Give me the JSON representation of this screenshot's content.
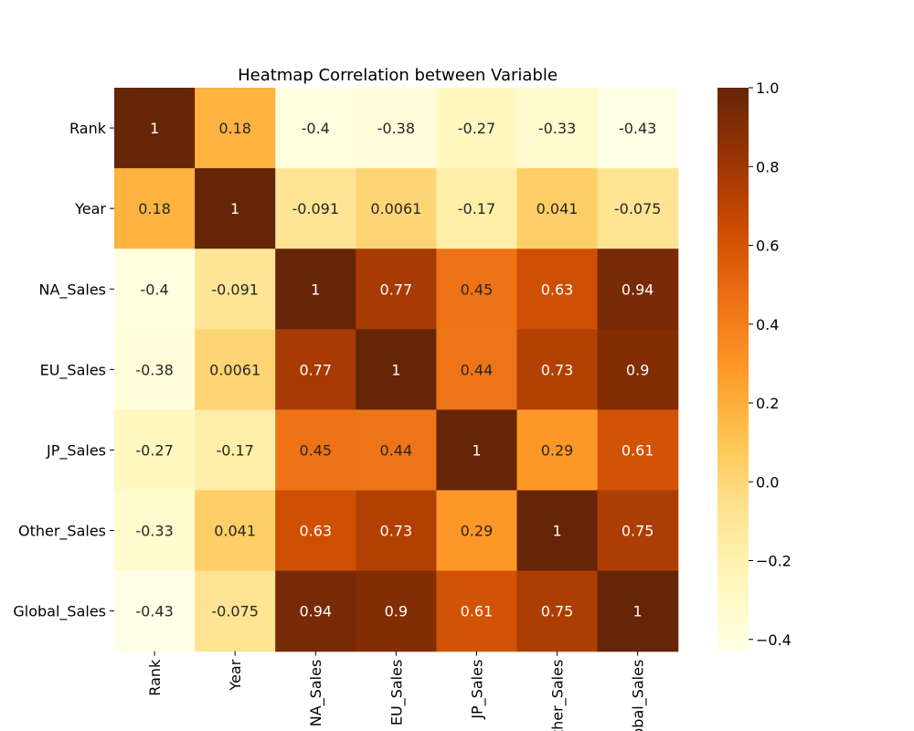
{
  "chart_data": {
    "type": "heatmap",
    "title": "Heatmap Correlation between Variable",
    "rows": [
      "Rank",
      "Year",
      "NA_Sales",
      "EU_Sales",
      "JP_Sales",
      "Other_Sales",
      "Global_Sales"
    ],
    "columns": [
      "Rank",
      "Year",
      "NA_Sales",
      "EU_Sales",
      "JP_Sales",
      "Other_Sales",
      "Global_Sales"
    ],
    "values": [
      [
        1,
        0.18,
        -0.4,
        -0.38,
        -0.27,
        -0.33,
        -0.43
      ],
      [
        0.18,
        1,
        -0.091,
        0.0061,
        -0.17,
        0.041,
        -0.075
      ],
      [
        -0.4,
        -0.091,
        1,
        0.77,
        0.45,
        0.63,
        0.94
      ],
      [
        -0.38,
        0.0061,
        0.77,
        1,
        0.44,
        0.73,
        0.9
      ],
      [
        -0.27,
        -0.17,
        0.45,
        0.44,
        1,
        0.29,
        0.61
      ],
      [
        -0.33,
        0.041,
        0.63,
        0.73,
        0.29,
        1,
        0.75
      ],
      [
        -0.43,
        -0.075,
        0.94,
        0.9,
        0.61,
        0.75,
        1
      ]
    ],
    "colormap": "YlOrBr",
    "colorbar": {
      "min": -0.43,
      "max": 1.0,
      "ticks": [
        1.0,
        0.8,
        0.6,
        0.4,
        0.2,
        0.0,
        -0.2,
        -0.4
      ],
      "tick_labels": [
        "1.0",
        "0.8",
        "0.6",
        "0.4",
        "0.2",
        "0.0",
        "−0.2",
        "−0.4"
      ],
      "stops": [
        "#ffffe5",
        "#fff7bc",
        "#fee391",
        "#fec44f",
        "#fe9929",
        "#ec7014",
        "#cc4c02",
        "#993404",
        "#662506"
      ]
    }
  }
}
